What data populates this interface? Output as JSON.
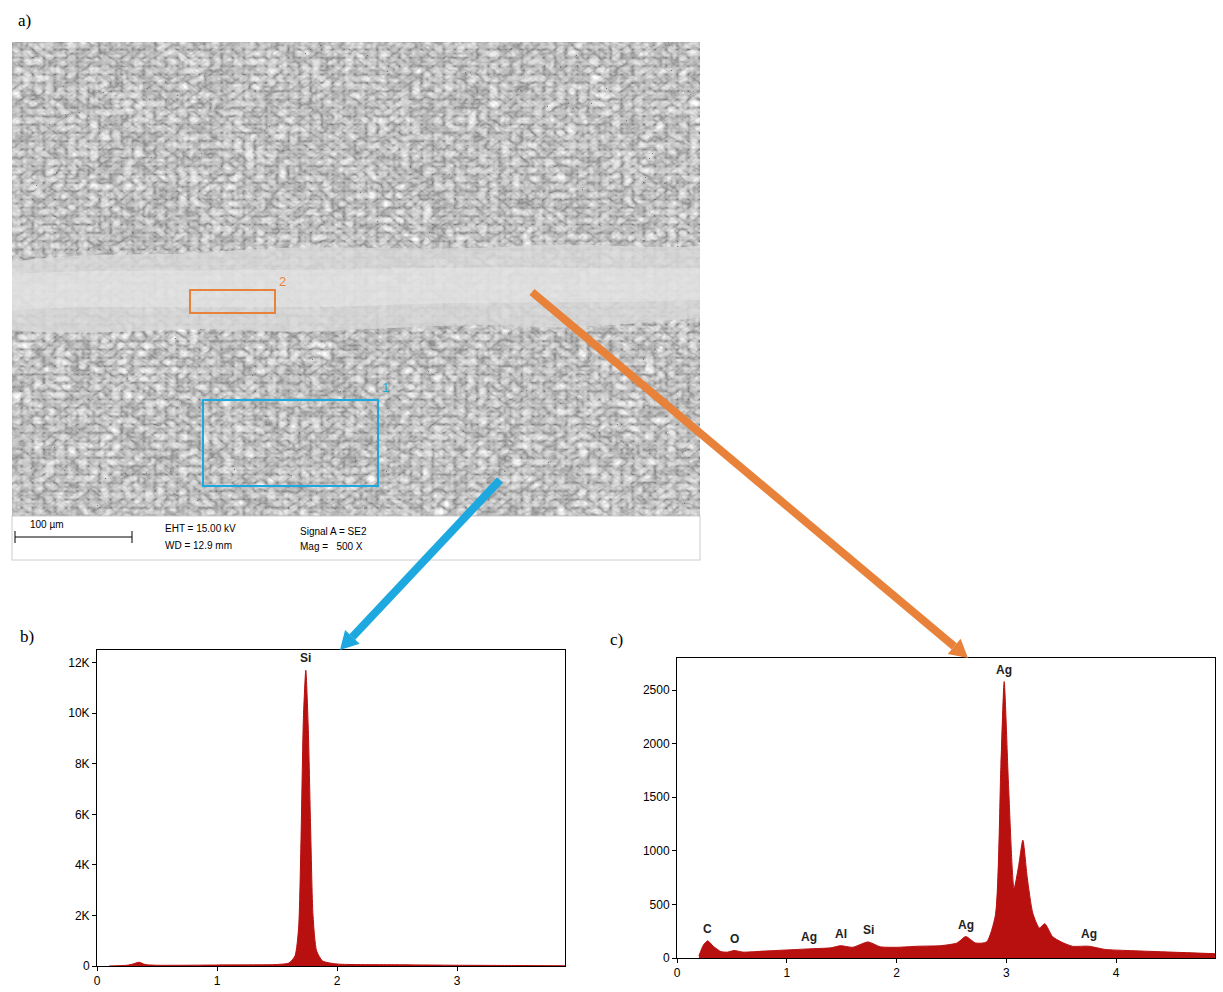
{
  "image": {
    "panel_label": "a)",
    "regions": [
      {
        "label": "1",
        "color": "#1ea8e0"
      },
      {
        "label": "2",
        "color": "#e8823a"
      }
    ],
    "scale_bar": "100 µm",
    "info": [
      "EHT = 15.00 kV",
      "WD = 12.9 mm",
      "Signal A = SE2",
      "Mag =   500 X"
    ]
  },
  "chart_data": [
    {
      "panel_label": "b)",
      "type": "area",
      "color": "#b80f0f",
      "x": [
        0.1,
        0.25,
        0.3,
        0.35,
        0.4,
        0.5,
        1.0,
        1.5,
        1.6,
        1.65,
        1.68,
        1.7,
        1.72,
        1.74,
        1.76,
        1.78,
        1.8,
        1.83,
        1.88,
        2.0,
        2.5,
        3.0,
        3.5,
        3.9
      ],
      "values": [
        0,
        30,
        80,
        150,
        60,
        30,
        40,
        60,
        120,
        400,
        1500,
        5000,
        9800,
        11700,
        9500,
        5500,
        2000,
        600,
        200,
        80,
        50,
        30,
        20,
        10
      ],
      "xlim": [
        0,
        3.9
      ],
      "xticks": [
        0,
        1,
        2,
        3
      ],
      "ylim": [
        0,
        12500
      ],
      "yticks": [
        0,
        {
          "value": 2000,
          "label": "2K"
        },
        {
          "value": 4000,
          "label": "4K"
        },
        {
          "value": 6000,
          "label": "6K"
        },
        {
          "value": 8000,
          "label": "8K"
        },
        {
          "value": 10000,
          "label": "10K"
        },
        {
          "value": 12000,
          "label": "12K"
        }
      ],
      "grid": false,
      "annotations": [
        {
          "text": "Si",
          "x": 1.74,
          "y": 11700
        }
      ]
    },
    {
      "panel_label": "c)",
      "type": "area",
      "color": "#b80f0f",
      "x": [
        0.2,
        0.24,
        0.28,
        0.33,
        0.4,
        0.46,
        0.52,
        0.6,
        0.8,
        1.0,
        1.2,
        1.4,
        1.49,
        1.6,
        1.74,
        1.85,
        2.0,
        2.2,
        2.4,
        2.55,
        2.63,
        2.72,
        2.82,
        2.9,
        2.95,
        2.98,
        3.02,
        3.07,
        3.11,
        3.15,
        3.19,
        3.24,
        3.3,
        3.35,
        3.42,
        3.5,
        3.6,
        3.75,
        3.9,
        4.1,
        4.5,
        4.9
      ],
      "values": [
        20,
        120,
        160,
        110,
        60,
        55,
        70,
        55,
        65,
        75,
        85,
        95,
        115,
        100,
        150,
        105,
        100,
        110,
        115,
        140,
        200,
        140,
        150,
        400,
        1800,
        2580,
        1600,
        650,
        850,
        1100,
        750,
        420,
        280,
        320,
        200,
        150,
        110,
        110,
        80,
        70,
        55,
        40
      ],
      "xlim": [
        0,
        4.9
      ],
      "xticks": [
        0,
        1,
        2,
        3,
        4
      ],
      "ylim": [
        0,
        2800
      ],
      "yticks": [
        0,
        500,
        1000,
        1500,
        2000,
        2500
      ],
      "grid": false,
      "annotations": [
        {
          "text": "C",
          "x": 0.28,
          "y": 160
        },
        {
          "text": "O",
          "x": 0.52,
          "y": 70
        },
        {
          "text": "Ag",
          "x": 1.2,
          "y": 85
        },
        {
          "text": "Al",
          "x": 1.49,
          "y": 115
        },
        {
          "text": "Si",
          "x": 1.74,
          "y": 150
        },
        {
          "text": "Ag",
          "x": 2.63,
          "y": 200
        },
        {
          "text": "Ag",
          "x": 2.98,
          "y": 2580
        },
        {
          "text": "Ag",
          "x": 3.75,
          "y": 110
        }
      ]
    }
  ]
}
